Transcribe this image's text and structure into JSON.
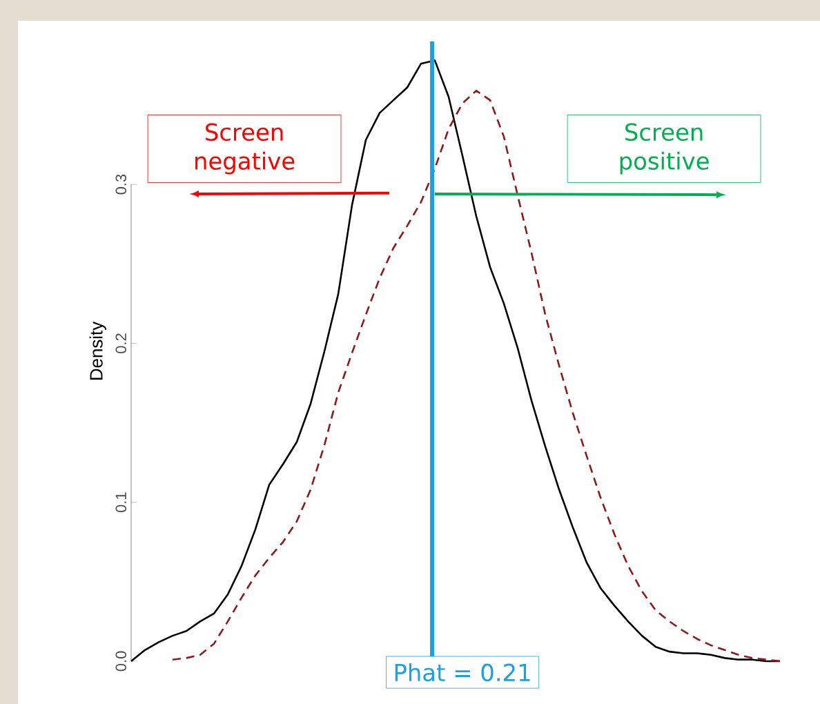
{
  "chart_data": {
    "type": "line",
    "ylabel": "Density",
    "categories": [
      null,
      null,
      null,
      null,
      null,
      null,
      null,
      null,
      null,
      null,
      null,
      null,
      null,
      null,
      null,
      null,
      null,
      null,
      null,
      null,
      null,
      null,
      null,
      null,
      null,
      null,
      null,
      null,
      null,
      null,
      null,
      null,
      null,
      null,
      null,
      null,
      null,
      null,
      null,
      null,
      null,
      null,
      null,
      null,
      null,
      null,
      null,
      null
    ],
    "series": [
      {
        "color": "#000000",
        "line_style": "solid",
        "values": [
          0.0,
          0.007,
          0.012,
          0.016,
          0.019,
          0.025,
          0.03,
          0.042,
          0.06,
          0.083,
          0.111,
          0.124,
          0.138,
          0.162,
          0.195,
          0.231,
          0.287,
          0.328,
          0.345,
          0.353,
          0.361,
          0.376,
          0.378,
          0.355,
          0.318,
          0.28,
          0.248,
          0.225,
          0.197,
          0.164,
          0.135,
          0.108,
          0.084,
          0.062,
          0.046,
          0.035,
          0.025,
          0.016,
          0.009,
          0.006,
          0.005,
          0.005,
          0.004,
          0.002,
          0.001,
          0.001,
          0.0,
          0.0
        ]
      },
      {
        "color": "#8b1a1a",
        "line_style": "dashed",
        "values": [
          null,
          null,
          null,
          0.001,
          0.002,
          0.004,
          0.011,
          0.025,
          0.04,
          0.054,
          0.065,
          0.075,
          0.088,
          0.108,
          0.136,
          0.169,
          0.194,
          0.218,
          0.241,
          0.26,
          0.274,
          0.289,
          0.31,
          0.335,
          0.351,
          0.359,
          0.353,
          0.33,
          0.293,
          0.257,
          0.218,
          0.186,
          0.156,
          0.129,
          0.103,
          0.08,
          0.06,
          0.044,
          0.032,
          0.025,
          0.019,
          0.014,
          0.01,
          0.007,
          0.004,
          0.002,
          0.001,
          0.0
        ]
      }
    ],
    "ylim": [
      0,
      0.39
    ],
    "yticks": [
      {
        "value": 0,
        "label": "0.0"
      },
      {
        "value": 0.1,
        "label": "0.1"
      },
      {
        "value": 0.2,
        "label": "0.2"
      },
      {
        "value": 0.3,
        "label": "0.3"
      }
    ],
    "annotations": [
      "Screen negative",
      "Screen positive",
      "Phat = 0.21"
    ],
    "marker": "none"
  }
}
